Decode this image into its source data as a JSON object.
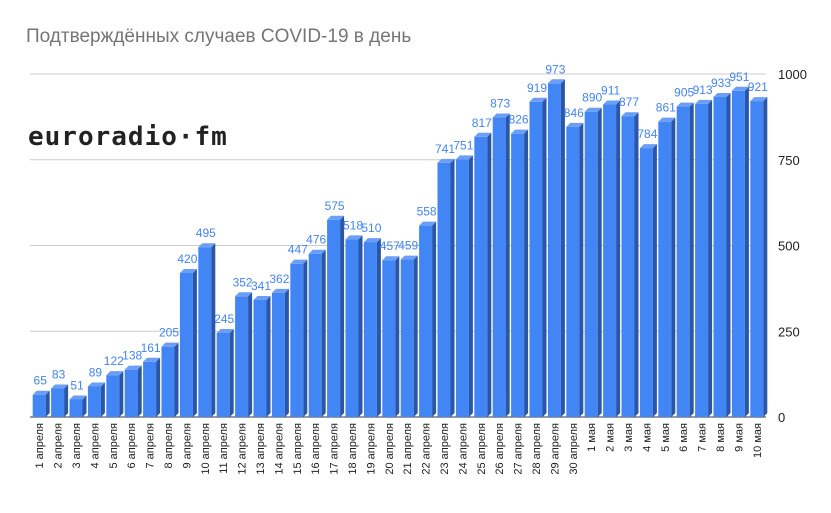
{
  "chart_data": {
    "type": "bar",
    "title": "Подтверждённых случаев COVID-19 в день",
    "categories": [
      "1 апреля",
      "2 апреля",
      "3 апреля",
      "4 апреля",
      "5 апреля",
      "6 апреля",
      "7 апреля",
      "8 апреля",
      "9 апреля",
      "10 апреля",
      "11 апреля",
      "12 апреля",
      "13 апреля",
      "14 апреля",
      "15 апреля",
      "16 апреля",
      "17 апреля",
      "18 апреля",
      "19 апреля",
      "20 апреля",
      "21 апреля",
      "22 апреля",
      "23 апреля",
      "24 апреля",
      "25 апреля",
      "26 апреля",
      "27 апреля",
      "28 апреля",
      "29 апреля",
      "30 апреля",
      "1 мая",
      "2 мая",
      "3 мая",
      "4 мая",
      "5 мая",
      "6 мая",
      "7 мая",
      "8 мая",
      "9 мая",
      "10 мая"
    ],
    "values": [
      65,
      83,
      51,
      89,
      122,
      138,
      161,
      205,
      420,
      495,
      245,
      352,
      341,
      362,
      447,
      476,
      575,
      518,
      510,
      457,
      459,
      558,
      741,
      751,
      817,
      873,
      826,
      919,
      973,
      846,
      890,
      911,
      877,
      784,
      861,
      905,
      913,
      933,
      951,
      921
    ],
    "ylim": [
      0,
      1000
    ],
    "yticks": [
      0,
      250,
      500,
      750,
      1000
    ],
    "yaxis_side": "right",
    "grid": true,
    "colors": {
      "bar": "#4285f4",
      "bar_side": "#2a56a8",
      "bar_top": "#6a9ef7",
      "label": "#4285f4",
      "grid": "#cccccc"
    }
  },
  "logo": "euroradio·fm"
}
